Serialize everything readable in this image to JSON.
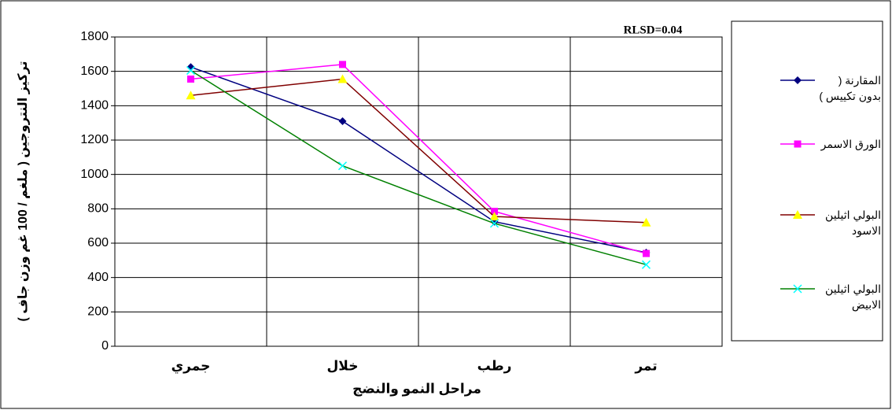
{
  "chart_data": {
    "type": "line",
    "annotation": "RLSD=0.04",
    "x_label": "مراحل النمو والنضج",
    "y_label": "تركيز النتروجين ( ملغم / 100 غم وزن جاف )",
    "categories": [
      "جمري",
      "خلال",
      "رطب",
      "تمر"
    ],
    "series": [
      {
        "name": "المقارنة ( بدون تكييس )",
        "color": "#000080",
        "marker": "diamond",
        "marker_color": "#000080",
        "values": [
          1625,
          1310,
          725,
          545
        ]
      },
      {
        "name": "الورق الاسمر",
        "color": "#ff00ff",
        "marker": "square",
        "marker_color": "#ff00ff",
        "values": [
          1555,
          1640,
          785,
          540
        ]
      },
      {
        "name": "البولي اثيلين الاسود",
        "color": "#800000",
        "marker": "triangle",
        "marker_color": "#ffff00",
        "values": [
          1460,
          1555,
          755,
          720
        ]
      },
      {
        "name": "البولي اثيلين الابيض",
        "color": "#008000",
        "marker": "x",
        "marker_color": "#00ffff",
        "values": [
          1605,
          1050,
          715,
          475
        ]
      }
    ],
    "ylim": [
      0,
      1800
    ],
    "yticks": [
      0,
      200,
      400,
      600,
      800,
      1000,
      1200,
      1400,
      1600,
      1800
    ],
    "grid": true
  }
}
